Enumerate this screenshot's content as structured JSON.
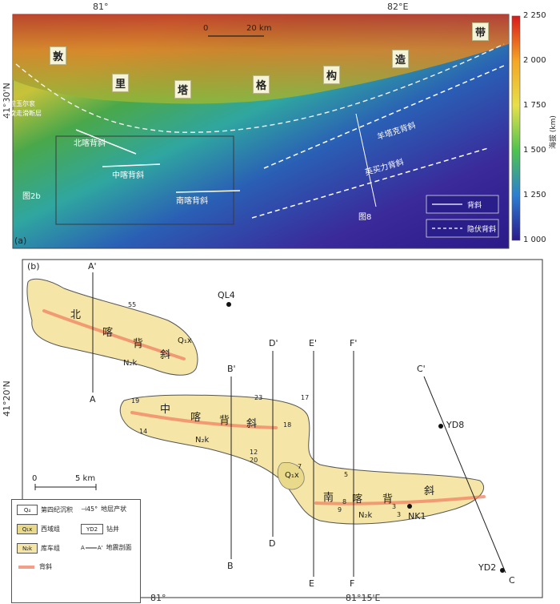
{
  "panel_a": {
    "label": "(a)",
    "top_lon_labels": [
      "81°",
      "82°E"
    ],
    "left_lat_label": "41°30'N",
    "scale_bar": {
      "zero": "0",
      "length": "20 km"
    },
    "range_name_chars": [
      "敦",
      "里",
      "塔",
      "格",
      "构",
      "造",
      "带"
    ],
    "fault_label_1": "喀拉玉尔衮",
    "fault_label_2": "右旋走滑断层",
    "anticlines": {
      "north": "北喀背斜",
      "middle": "中喀背斜",
      "south": "南喀背斜",
      "yangtake": "羊塔克背斜",
      "yingmaili": "英买力背斜"
    },
    "fig_refs": {
      "fig2b": "图2b",
      "fig8": "图8"
    },
    "legend": {
      "anticline": "背斜",
      "buried_anticline": "隐伏背斜"
    },
    "colorbar": {
      "title": "海拔 (km)",
      "ticks": [
        "2 250",
        "2 000",
        "1 750",
        "1 500",
        "1 250",
        "1 000"
      ]
    }
  },
  "panel_b": {
    "label": "(b)",
    "bottom_lon_labels": [
      "81°",
      "81°15'E"
    ],
    "left_lat_label": "41°20'N",
    "scale_bar": {
      "zero": "0",
      "length": "5 km"
    },
    "wells": [
      "QL4",
      "YD8",
      "NK1",
      "YD2"
    ],
    "section_labels": {
      "A_top": "A'",
      "A_bottom": "A",
      "B_top": "B'",
      "B_bottom": "B",
      "C_top": "C'",
      "C_bottom": "C",
      "D_top": "D'",
      "D_bottom": "D",
      "E_top": "E'",
      "E_bottom": "E",
      "F_top": "F'",
      "F_bottom": "F"
    },
    "anticline_chars": {
      "north": [
        "北",
        "喀",
        "背",
        "斜"
      ],
      "middle": [
        "中",
        "喀",
        "背",
        "斜"
      ],
      "south": [
        "南",
        "喀",
        "背",
        "斜"
      ]
    },
    "unit_labels": {
      "q4": "Q₄",
      "q1x": "Q₁x",
      "n2k": "N₂k"
    },
    "dip_values": [
      "55",
      "18",
      "23",
      "17",
      "19",
      "14",
      "12",
      "20",
      "7",
      "3",
      "3",
      "5",
      "8",
      "9"
    ],
    "legend": {
      "q4_code": "Q₄",
      "q4": "第四纪沉积",
      "q1x_code": "Q₁x",
      "q1x": "西域组",
      "n2k_code": "N₂k",
      "n2k": "库车组",
      "anticline": "背斜",
      "attitude": "地层产状",
      "attitude_sample": "45°",
      "well": "钻井",
      "well_code": "YD2",
      "section": "地震剖面",
      "section_a": "A",
      "section_a2": "A'"
    },
    "colors": {
      "n2k": "#f5e6a8",
      "q1x": "#e9d98a",
      "axis": "#f08060"
    }
  }
}
